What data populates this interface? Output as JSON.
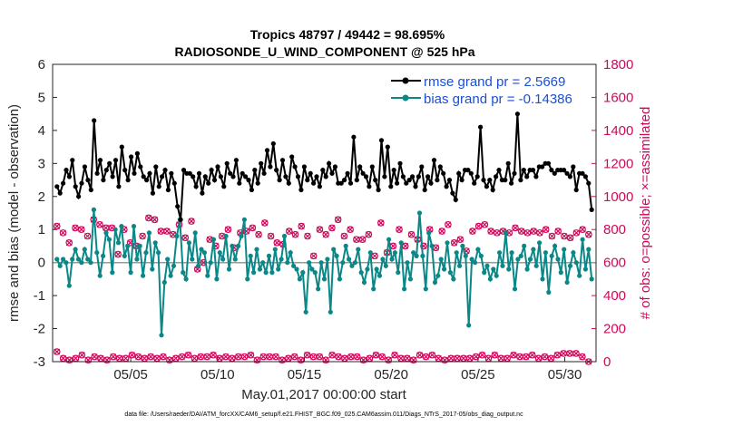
{
  "chart_data": {
    "type": "line",
    "title_line1": "Tropics 48797 / 49442 = 98.695%",
    "title_line2": "RADIOSONDE_U_WIND_COMPONENT @ 525 hPa",
    "xlabel": "May.01,2017 00:00:00 start",
    "ylabel_left": "rmse and bias (model - observation)",
    "ylabel_right": "# of obs: o=possible; ×=assimilated",
    "footnote": "data file: /Users/raeder/DAI/ATM_forcXX/CAM6_setup/f.e21.FHIST_BGC.f09_025.CAM6assim.011/Diags_NTrS_2017-05/obs_diag_output.nc",
    "x_range_days": [
      0.5,
      31.8
    ],
    "x_tick_days": [
      5,
      10,
      15,
      20,
      25,
      30
    ],
    "x_tick_labels": [
      "05/05",
      "05/10",
      "05/15",
      "05/20",
      "05/25",
      "05/30"
    ],
    "ylim_left": [
      -3,
      6
    ],
    "y_ticks_left": [
      -3,
      -2,
      -1,
      0,
      1,
      2,
      3,
      4,
      5,
      6
    ],
    "ylim_right": [
      0,
      1800
    ],
    "y_ticks_right": [
      0,
      200,
      400,
      600,
      800,
      1000,
      1200,
      1400,
      1600,
      1800
    ],
    "series": [
      {
        "name": "rmse",
        "legend": "rmse grand pr = 2.5669",
        "color": "#000000",
        "axis": "left",
        "values": [
          2.3,
          2.1,
          2.4,
          2.8,
          2.6,
          3.1,
          2.3,
          2.0,
          2.4,
          2.9,
          2.5,
          2.2,
          4.3,
          2.7,
          3.1,
          2.5,
          2.8,
          3.0,
          2.6,
          3.1,
          2.3,
          3.5,
          2.8,
          2.5,
          3.2,
          2.7,
          3.3,
          2.9,
          2.6,
          2.5,
          2.7,
          2.1,
          2.9,
          2.3,
          2.6,
          2.8,
          2.2,
          2.7,
          2.4,
          1.7,
          1.3,
          2.8,
          2.7,
          2.7,
          2.6,
          2.3,
          2.7,
          2.1,
          2.6,
          2.4,
          2.8,
          2.5,
          2.9,
          2.6,
          2.3,
          3.0,
          2.7,
          2.6,
          3.1,
          2.4,
          2.7,
          2.6,
          2.5,
          2.2,
          2.8,
          2.4,
          3.0,
          2.7,
          3.4,
          2.9,
          3.6,
          2.8,
          2.5,
          3.1,
          2.6,
          2.4,
          3.2,
          2.9,
          2.6,
          2.2,
          2.9,
          2.5,
          2.7,
          2.4,
          2.6,
          2.3,
          2.8,
          2.6,
          3.0,
          2.7,
          2.9,
          2.4,
          2.4,
          2.5,
          2.7,
          2.4,
          3.8,
          2.5,
          2.9,
          2.7,
          2.6,
          2.3,
          2.9,
          2.5,
          2.2,
          3.7,
          2.6,
          3.5,
          2.3,
          2.8,
          2.4,
          3.0,
          2.6,
          2.4,
          2.5,
          2.6,
          2.3,
          2.6,
          2.9,
          2.2,
          2.6,
          2.4,
          3.1,
          2.5,
          2.9,
          2.7,
          2.3,
          2.5,
          2.1,
          1.9,
          2.7,
          2.5,
          2.8,
          2.8,
          2.7,
          2.4,
          2.6,
          4.1,
          2.5,
          2.3,
          2.5,
          2.2,
          2.6,
          2.8,
          2.5,
          2.5,
          3.0,
          2.4,
          2.7,
          4.5,
          2.5,
          2.8,
          2.6,
          2.8,
          2.8,
          2.6,
          2.9,
          2.9,
          3.0,
          3.0,
          2.8,
          2.7,
          2.8,
          2.8,
          2.8,
          2.7,
          2.6,
          2.9,
          2.2,
          2.7,
          2.7,
          2.6,
          2.4,
          1.6
        ]
      },
      {
        "name": "bias",
        "legend": "bias grand pr = -0.14386",
        "color": "#0a8787",
        "axis": "left",
        "values": [
          0.1,
          -0.1,
          0.1,
          0.0,
          -0.7,
          0.1,
          0.4,
          0.1,
          0.0,
          0.4,
          0.1,
          0.0,
          1.6,
          0.3,
          -0.4,
          0.2,
          0.9,
          0.7,
          -0.3,
          1.0,
          0.6,
          1.1,
          0.2,
          0.5,
          -0.3,
          1.1,
          0.1,
          0.5,
          -0.4,
          0.3,
          0.9,
          -0.2,
          0.6,
          0.3,
          -2.2,
          -0.6,
          0.1,
          -0.4,
          -0.1,
          0.8,
          1.3,
          -0.3,
          -0.5,
          0.6,
          0.1,
          0.9,
          -0.1,
          0.4,
          0.3,
          -0.4,
          0.0,
          0.7,
          -0.5,
          0.3,
          0.1,
          0.8,
          -0.2,
          0.5,
          0.1,
          0.5,
          0.8,
          1.3,
          -0.5,
          0.2,
          -0.3,
          0.4,
          -0.2,
          0.0,
          -0.3,
          0.2,
          -0.3,
          0.4,
          -0.2,
          0.1,
          0.8,
          0.0,
          0.3,
          -0.1,
          -0.2,
          -0.5,
          -0.3,
          -1.5,
          0.0,
          -0.2,
          -0.3,
          -0.8,
          0.0,
          -0.5,
          0.1,
          -1.5,
          0.4,
          0.2,
          -0.5,
          0.0,
          0.5,
          0.1,
          -0.1,
          0.0,
          0.4,
          -0.3,
          -0.6,
          -0.2,
          0.3,
          -0.8,
          -0.2,
          -0.4,
          0.1,
          -0.1,
          0.7,
          0.1,
          0.3,
          -0.3,
          0.6,
          -0.8,
          0.0,
          -0.5,
          0.3,
          0.2,
          1.5,
          0.2,
          -0.8,
          0.9,
          0.5,
          -0.6,
          -0.4,
          0.1,
          -0.2,
          0.6,
          -0.3,
          -0.5,
          0.3,
          -0.1,
          0.5,
          0.2,
          -1.9,
          0.1,
          0.0,
          0.4,
          0.2,
          -0.3,
          -0.1,
          -0.5,
          -0.2,
          -0.4,
          0.3,
          -0.1,
          0.9,
          -0.2,
          0.3,
          -0.8,
          0.1,
          0.2,
          0.5,
          -0.2,
          0.1,
          0.4,
          -0.1,
          0.6,
          -0.5,
          0.3,
          -0.9,
          0.2,
          0.5,
          0.1,
          -0.3,
          0.4,
          -0.6,
          -0.1,
          0.3,
          0.0,
          -0.4,
          0.7,
          -0.2,
          0.4,
          -0.5
        ]
      },
      {
        "name": "obs possible / assimilated (upper)",
        "color": "#cc0a5a",
        "axis": "right",
        "values": [
          820,
          800,
          780,
          790,
          720,
          780,
          810,
          730,
          800,
          700,
          760,
          790,
          860,
          740,
          830,
          730,
          810,
          790,
          810,
          720,
          650,
          790,
          800,
          770,
          720,
          840,
          700,
          720,
          760,
          840,
          870,
          780,
          860,
          730,
          790,
          850,
          790,
          690,
          770,
          650,
          830,
          780,
          750,
          790,
          850,
          660,
          560,
          580,
          600,
          720,
          740,
          870,
          700,
          820,
          760,
          840,
          800,
          620,
          690,
          820,
          780,
          860,
          790,
          750,
          810,
          700,
          770,
          770,
          840,
          710,
          760,
          640,
          720,
          800,
          710,
          610,
          790,
          780,
          770,
          720,
          820,
          650,
          760,
          750,
          640,
          790,
          800,
          700,
          770,
          780,
          810,
          720,
          860,
          810,
          760,
          740,
          800,
          690,
          740,
          810,
          740,
          700,
          770,
          780,
          640,
          720,
          840,
          780,
          660,
          810,
          700,
          780,
          800,
          780,
          700,
          800,
          770,
          740,
          740,
          780,
          700,
          770,
          800,
          750,
          690,
          790,
          790,
          780,
          830,
          760,
          720,
          790,
          740,
          780,
          670,
          810,
          790,
          710,
          820,
          760,
          830,
          790,
          790,
          730,
          780,
          690,
          790,
          810,
          780,
          760,
          810,
          790,
          790,
          800,
          780,
          760,
          790,
          820,
          780,
          740,
          800,
          770,
          760,
          800,
          790,
          790,
          760,
          820,
          750,
          770,
          780,
          760,
          800,
          760,
          770,
          730
        ]
      },
      {
        "name": "obs possible / assimilated (lower)",
        "color": "#cc0a5a",
        "axis": "right",
        "values": [
          60,
          30,
          20,
          40,
          10,
          30,
          20,
          10,
          40,
          20,
          10,
          30,
          30,
          20,
          20,
          40,
          10,
          20,
          30,
          30,
          20,
          10,
          20,
          30,
          40,
          20,
          30,
          10,
          20,
          40,
          30,
          40,
          20,
          40,
          30,
          20,
          10,
          30,
          20,
          20,
          30,
          50,
          40,
          30,
          20,
          10,
          30,
          20,
          30,
          20,
          40,
          30,
          20,
          10,
          30,
          20,
          20,
          40,
          30,
          20,
          30,
          20,
          40,
          20,
          10,
          20,
          30,
          20,
          30,
          40,
          30,
          20,
          10,
          30,
          20,
          40,
          30,
          20,
          10,
          20,
          40,
          20,
          30,
          20,
          30,
          20,
          10,
          30,
          40,
          20,
          30,
          20,
          20,
          40,
          30,
          20,
          30,
          20,
          10,
          40,
          20,
          30,
          40,
          20,
          30,
          20,
          10,
          20,
          40,
          30,
          20,
          30,
          20,
          20,
          10,
          30,
          40,
          20,
          30,
          20,
          40,
          20,
          20,
          30,
          10,
          30,
          20,
          40,
          20,
          30,
          20,
          30,
          20,
          10,
          30,
          20,
          40,
          30,
          20,
          20,
          40,
          30,
          20,
          30,
          20,
          10,
          40,
          20,
          30,
          20,
          30,
          20,
          40,
          30,
          20,
          10,
          30,
          40,
          20,
          50,
          40,
          60,
          50,
          60,
          50,
          60,
          50,
          40,
          30,
          20,
          0,
          0
        ]
      }
    ]
  }
}
